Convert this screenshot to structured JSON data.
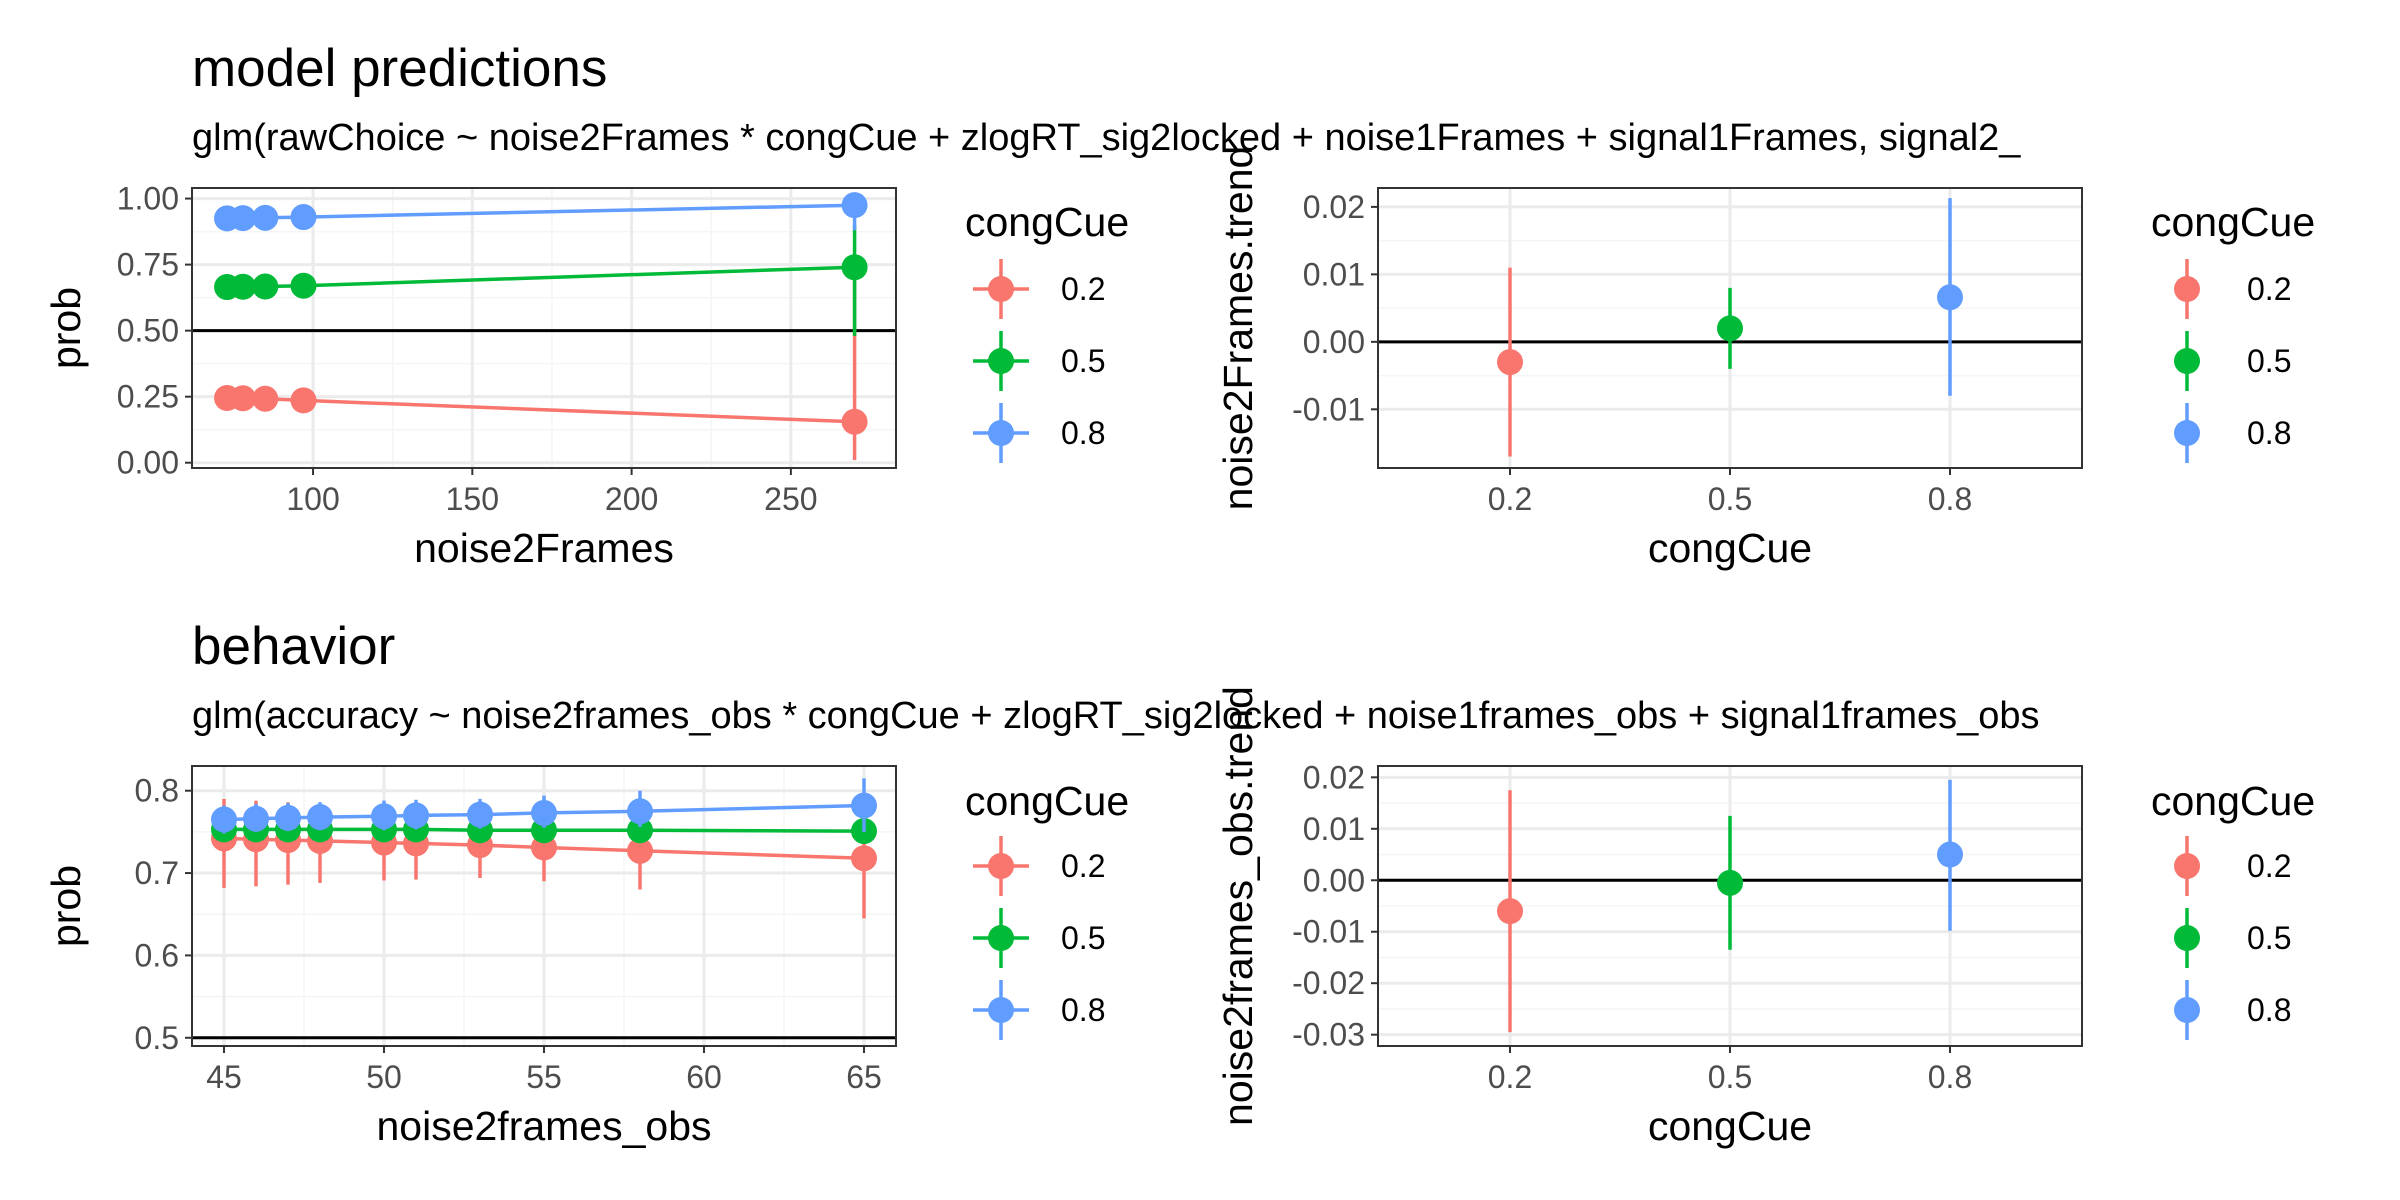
{
  "colors": {
    "0.2": "#F8766D",
    "0.5": "#00BA38",
    "0.8": "#619CFF",
    "grid_major": "#EBEBEB",
    "grid_minor": "#F5F5F5",
    "panel_border": "#333333",
    "ref_line": "#000000"
  },
  "sections": [
    {
      "title": "model predictions",
      "subtitle": "glm(rawChoice ~ noise2Frames * congCue + zlogRT_sig2locked + noise1Frames + signal1Frames, signal2_"
    },
    {
      "title": "behavior",
      "subtitle": "glm(accuracy ~ noise2frames_obs * congCue + zlogRT_sig2locked + noise1frames_obs + signal1frames_obs"
    }
  ],
  "chart_data": [
    {
      "type": "line",
      "xlabel": "noise2Frames",
      "ylabel": "prob",
      "xlim": [
        62,
        283
      ],
      "ylim": [
        -0.02,
        1.04
      ],
      "xticks": [
        100,
        150,
        200,
        250
      ],
      "yticks": [
        0.0,
        0.25,
        0.5,
        0.75,
        1.0
      ],
      "xtick_labels": [
        "100",
        "150",
        "200",
        "250"
      ],
      "ytick_labels": [
        "0.00",
        "0.25",
        "0.50",
        "0.75",
        "1.00"
      ],
      "hline": 0.5,
      "legend_title": "congCue",
      "legend_labels": [
        "0.2",
        "0.5",
        "0.8"
      ],
      "series": [
        {
          "name": "0.2",
          "x": [
            73,
            78,
            85,
            97,
            270
          ],
          "y": [
            0.245,
            0.244,
            0.242,
            0.236,
            0.155
          ],
          "lower": [
            0.23,
            0.23,
            0.228,
            0.224,
            0.01
          ],
          "upper": [
            0.26,
            0.258,
            0.256,
            0.248,
            0.74
          ]
        },
        {
          "name": "0.5",
          "x": [
            73,
            78,
            85,
            97,
            270
          ],
          "y": [
            0.665,
            0.666,
            0.667,
            0.67,
            0.74
          ],
          "lower": [
            0.655,
            0.656,
            0.657,
            0.66,
            0.48
          ],
          "upper": [
            0.675,
            0.676,
            0.677,
            0.68,
            0.9
          ]
        },
        {
          "name": "0.8",
          "x": [
            73,
            78,
            85,
            97,
            270
          ],
          "y": [
            0.925,
            0.926,
            0.927,
            0.93,
            0.975
          ],
          "lower": [
            0.918,
            0.919,
            0.92,
            0.923,
            0.88
          ],
          "upper": [
            0.932,
            0.933,
            0.934,
            0.937,
            0.995
          ]
        }
      ]
    },
    {
      "type": "scatter",
      "xlabel": "congCue",
      "ylabel": "noise2Frames.trend",
      "categories": [
        "0.2",
        "0.5",
        "0.8"
      ],
      "ylim": [
        -0.0187,
        0.0228
      ],
      "yticks": [
        -0.01,
        0.0,
        0.01,
        0.02
      ],
      "ytick_labels": [
        "-0.01",
        "0.00",
        "0.01",
        "0.02"
      ],
      "hline": 0.0,
      "legend_title": "congCue",
      "legend_labels": [
        "0.2",
        "0.5",
        "0.8"
      ],
      "points": [
        {
          "name": "0.2",
          "y": -0.003,
          "lower": -0.017,
          "upper": 0.011
        },
        {
          "name": "0.5",
          "y": 0.002,
          "lower": -0.004,
          "upper": 0.008
        },
        {
          "name": "0.8",
          "y": 0.0066,
          "lower": -0.008,
          "upper": 0.0213
        }
      ]
    },
    {
      "type": "line",
      "xlabel": "noise2frames_obs",
      "ylabel": "prob",
      "xlim": [
        44,
        66
      ],
      "ylim": [
        0.49,
        0.83
      ],
      "xticks": [
        45,
        50,
        55,
        60,
        65
      ],
      "yticks": [
        0.5,
        0.6,
        0.7,
        0.8
      ],
      "xtick_labels": [
        "45",
        "50",
        "55",
        "60",
        "65"
      ],
      "ytick_labels": [
        "0.5",
        "0.6",
        "0.7",
        "0.8"
      ],
      "hline": 0.5,
      "legend_title": "congCue",
      "legend_labels": [
        "0.2",
        "0.5",
        "0.8"
      ],
      "series": [
        {
          "name": "0.2",
          "x": [
            45,
            46,
            47,
            48,
            50,
            51,
            53,
            55,
            58,
            65
          ],
          "y": [
            0.742,
            0.741,
            0.74,
            0.739,
            0.737,
            0.736,
            0.734,
            0.731,
            0.727,
            0.718
          ],
          "lower": [
            0.682,
            0.684,
            0.686,
            0.688,
            0.691,
            0.692,
            0.694,
            0.69,
            0.68,
            0.645
          ],
          "upper": [
            0.79,
            0.788,
            0.786,
            0.784,
            0.78,
            0.778,
            0.774,
            0.77,
            0.768,
            0.765
          ]
        },
        {
          "name": "0.5",
          "x": [
            45,
            46,
            47,
            48,
            50,
            51,
            53,
            55,
            58,
            65
          ],
          "y": [
            0.753,
            0.753,
            0.753,
            0.753,
            0.753,
            0.753,
            0.752,
            0.752,
            0.752,
            0.751
          ],
          "lower": [
            0.745,
            0.745,
            0.745,
            0.745,
            0.745,
            0.745,
            0.744,
            0.744,
            0.744,
            0.743
          ],
          "upper": [
            0.761,
            0.761,
            0.761,
            0.761,
            0.761,
            0.761,
            0.76,
            0.76,
            0.76,
            0.759
          ]
        },
        {
          "name": "0.8",
          "x": [
            45,
            46,
            47,
            48,
            50,
            51,
            53,
            55,
            58,
            65
          ],
          "y": [
            0.765,
            0.766,
            0.767,
            0.768,
            0.769,
            0.77,
            0.771,
            0.773,
            0.775,
            0.782
          ],
          "lower": [
            0.748,
            0.75,
            0.751,
            0.752,
            0.752,
            0.753,
            0.754,
            0.755,
            0.756,
            0.75
          ],
          "upper": [
            0.782,
            0.784,
            0.785,
            0.786,
            0.788,
            0.789,
            0.79,
            0.794,
            0.8,
            0.815
          ]
        }
      ]
    },
    {
      "type": "scatter",
      "xlabel": "congCue",
      "ylabel": "noise2frames_obs.trend",
      "categories": [
        "0.2",
        "0.5",
        "0.8"
      ],
      "ylim": [
        -0.0322,
        0.0222
      ],
      "yticks": [
        -0.03,
        -0.02,
        -0.01,
        0.0,
        0.01,
        0.02
      ],
      "ytick_labels": [
        "-0.03",
        "-0.02",
        "-0.01",
        "0.00",
        "0.01",
        "0.02"
      ],
      "hline": 0.0,
      "legend_title": "congCue",
      "legend_labels": [
        "0.2",
        "0.5",
        "0.8"
      ],
      "points": [
        {
          "name": "0.2",
          "y": -0.006,
          "lower": -0.0295,
          "upper": 0.0175
        },
        {
          "name": "0.5",
          "y": -0.0005,
          "lower": -0.0135,
          "upper": 0.0125
        },
        {
          "name": "0.8",
          "y": 0.005,
          "lower": -0.0098,
          "upper": 0.0195
        }
      ]
    }
  ]
}
